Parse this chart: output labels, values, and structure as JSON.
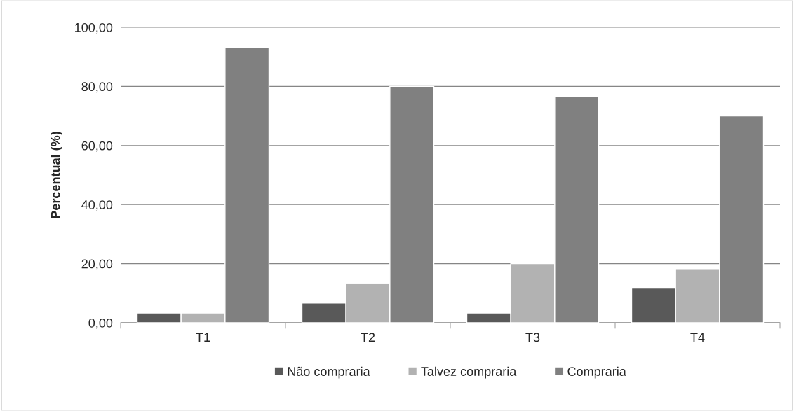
{
  "chart_data": {
    "type": "bar",
    "ylabel": "Percentual (%)",
    "categories": [
      "T1",
      "T2",
      "T3",
      "T4"
    ],
    "series": [
      {
        "name": "Não compraria",
        "color": "#595959",
        "values": [
          3.3,
          6.7,
          3.3,
          11.7
        ]
      },
      {
        "name": "Talvez compraria",
        "color": "#b2b2b2",
        "values": [
          3.3,
          13.3,
          20.0,
          18.3
        ]
      },
      {
        "name": "Compraria",
        "color": "#808080",
        "values": [
          93.3,
          80.0,
          76.7,
          70.0
        ]
      }
    ],
    "ylim": [
      0,
      100
    ],
    "yticks": [
      {
        "value": 0,
        "label": "0,00"
      },
      {
        "value": 20,
        "label": "20,00"
      },
      {
        "value": 40,
        "label": "40,00"
      },
      {
        "value": 60,
        "label": "60,00"
      },
      {
        "value": 80,
        "label": "80,00"
      },
      {
        "value": 100,
        "label": "100,00"
      }
    ],
    "grid": "y",
    "legend": "bottom"
  }
}
